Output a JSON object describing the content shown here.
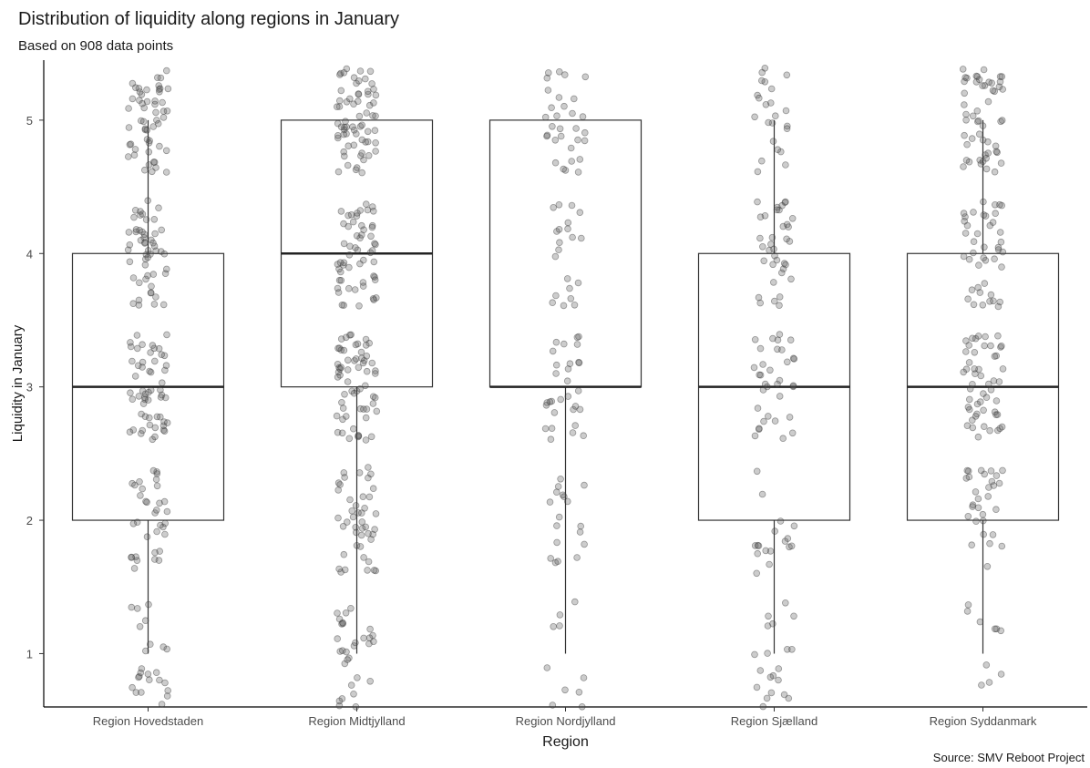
{
  "chart_data": {
    "type": "boxplot",
    "title": "Distribution of liquidity along regions in January",
    "subtitle": "Based on 908 data points",
    "caption": "Source: SMV Reboot Project",
    "xlabel": "Region",
    "ylabel": "Liquidity in January",
    "ylim": [
      0.6,
      5.45
    ],
    "yticks": [
      1,
      2,
      3,
      4,
      5
    ],
    "grid": false,
    "point_color": "#555555",
    "box_stroke": "#333333",
    "categories": [
      "Region Hovedstaden",
      "Region Midtjylland",
      "Region Nordjylland",
      "Region Sjælland",
      "Region Syddanmark"
    ],
    "boxes": [
      {
        "category": "Region Hovedstaden",
        "whisker_low": 1,
        "q1": 2,
        "median": 3,
        "q3": 4,
        "whisker_high": 5,
        "n_points": 220
      },
      {
        "category": "Region Midtjylland",
        "whisker_low": 1,
        "q1": 3,
        "median": 4,
        "q3": 5,
        "whisker_high": 5,
        "n_points": 260
      },
      {
        "category": "Region Nordjylland",
        "whisker_low": 1,
        "q1": 3,
        "median": 3,
        "q3": 5,
        "whisker_high": 5,
        "n_points": 110
      },
      {
        "category": "Region Sjælland",
        "whisker_low": 1,
        "q1": 2,
        "median": 3,
        "q3": 4,
        "whisker_high": 5,
        "n_points": 130
      },
      {
        "category": "Region Syddanmark",
        "whisker_low": 1,
        "q1": 2,
        "median": 3,
        "q3": 4,
        "whisker_high": 5,
        "n_points": 188
      }
    ]
  }
}
